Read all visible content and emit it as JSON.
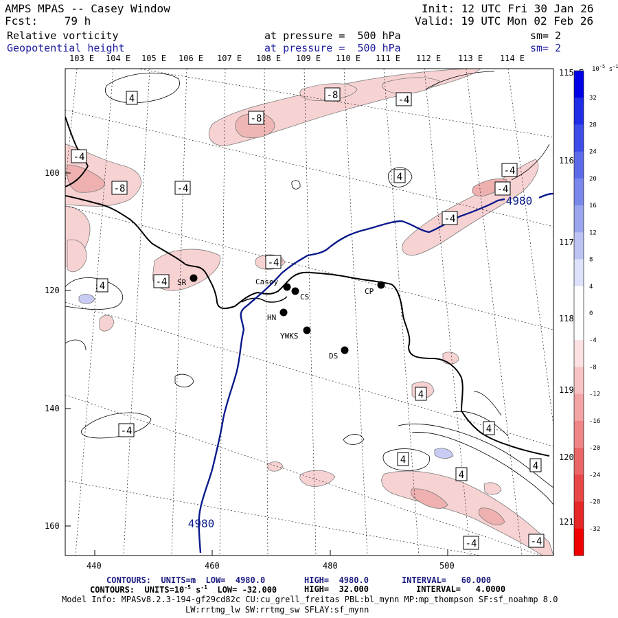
{
  "header": {
    "model": "AMPS MPAS -- Casey Window",
    "fcst": "Fcst:    79 h",
    "init": "Init: 12 UTC Fri 30 Jan 26",
    "valid": "Valid: 19 UTC Mon 02 Feb 26",
    "field1": "Relative vorticity",
    "field1_level": "at pressure =  500 hPa",
    "field1_sm": "sm= 2",
    "field2": "Geopotential height",
    "field2_level": "at pressure =  500 hPa",
    "field2_sm": "sm= 2"
  },
  "colors": {
    "height_contour": "#0a1a8c",
    "coast": "#000000",
    "grid": "#000000",
    "positive_shade": "#f7d2d2",
    "negative_shade": "#c8ccf4"
  },
  "top_lon_labels": [
    "103 E",
    "104 E",
    "105 E",
    "106 E",
    "107 E",
    "108 E",
    "109 E",
    "110 E",
    "111 E",
    "112 E",
    "113 E",
    "114 E"
  ],
  "right_lon_labels": [
    "115 E",
    "116 E",
    "117 E",
    "118 E",
    "119 E",
    "120 E",
    "121 E"
  ],
  "x_ticks": [
    "440",
    "460",
    "480",
    "500"
  ],
  "y_ticks": [
    "100",
    "120",
    "140",
    "160"
  ],
  "stations": [
    {
      "label": "Casey"
    },
    {
      "label": "CS"
    },
    {
      "label": "CP"
    },
    {
      "label": "SR"
    },
    {
      "label": "HN"
    },
    {
      "label": "YWKS"
    },
    {
      "label": "DS"
    }
  ],
  "contour_labels": [
    "4",
    "-8",
    "-4",
    "-8",
    "-4",
    "-8",
    "-4",
    "4",
    "-4",
    "-4",
    "4",
    "-4",
    "4",
    "-4",
    "4",
    "4",
    "4",
    "4",
    "-4",
    "-4",
    "-4",
    "-4"
  ],
  "height_labels": [
    "4980",
    "4980"
  ],
  "colorbar": {
    "unit": "10",
    "unit_exp": "-5",
    "unit_tail": " s",
    "unit_tail_exp": "-1",
    "ticks": [
      "32",
      "28",
      "24",
      "20",
      "16",
      "12",
      "8",
      "4",
      "0",
      "-4",
      "-8",
      "-12",
      "-16",
      "-20",
      "-24",
      "-28",
      "-32"
    ],
    "colors": [
      "#0000e6",
      "#1f2ee6",
      "#3d4de8",
      "#5c6be9",
      "#7a88eb",
      "#9aa5ee",
      "#bcc3f3",
      "#dde1f9",
      "#ffffff",
      "#ffffff",
      "#fbe1e1",
      "#f7c3c3",
      "#f3a4a4",
      "#ef8585",
      "#eb6666",
      "#e84747",
      "#e62828",
      "#f00000"
    ]
  },
  "footer": {
    "line1_a": "CONTOURS:  UNITS=m  LOW=  4980.0",
    "line1_b": "HIGH=  4980.0",
    "line1_c": "INTERVAL=   60.000",
    "line2_a": "CONTOURS:  UNITS=10",
    "line2_exp": "-5",
    "line2_b": " s",
    "line2_exp2": "-1",
    "line2_c": "  LOW= -32.000",
    "line2_d": "HIGH=  32.000",
    "line2_e": "INTERVAL=   4.0000",
    "line3": "Model Info: MPASv8.2.3-194-gf29cd82c CU:cu_grell_freitas PBL:bl_mynn MP:mp_thompson SF:sf_noahmp 8.0",
    "line4": "LW:rrtmg_lw SW:rrtmg_sw SFLAY:sf_mynn"
  }
}
